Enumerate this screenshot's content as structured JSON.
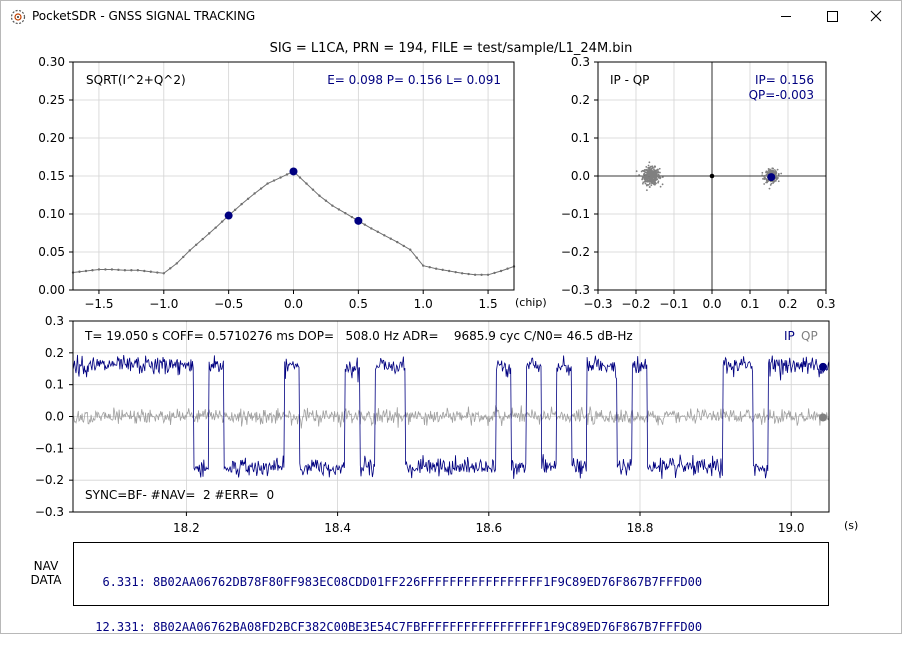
{
  "window": {
    "title": "PocketSDR - GNSS SIGNAL TRACKING",
    "icons": [
      "app-logo-icon",
      "minimize-icon",
      "maximize-icon",
      "close-icon"
    ]
  },
  "header": {
    "title": "SIG = L1CA, PRN = 194, FILE = test/sample/L1_24M.bin"
  },
  "correlation_plot": {
    "label": "SQRT(I^2+Q^2)",
    "readout": "E= 0.098 P= 0.156 L= 0.091",
    "x_unit": "(chip)",
    "x_ticks": [
      "−1.5",
      "−1.0",
      "−0.5",
      "0.0",
      "0.5",
      "1.0",
      "1.5"
    ],
    "y_ticks": [
      "0.00",
      "0.05",
      "0.10",
      "0.15",
      "0.20",
      "0.25",
      "0.30"
    ]
  },
  "iq_plot": {
    "label": "IP - QP",
    "ip_readout": "IP= 0.156",
    "qp_readout": "QP=-0.003",
    "x_ticks": [
      "−0.3",
      "−0.2",
      "−0.1",
      "0.0",
      "0.1",
      "0.2",
      "0.3"
    ],
    "y_ticks": [
      "−0.3",
      "−0.2",
      "−0.1",
      "0.0",
      "0.1",
      "0.2",
      "0.3"
    ]
  },
  "time_plot": {
    "status": "T= 19.050 s COFF= 0.5710276 ms DOP=   508.0 Hz ADR=    9685.9 cyc C/N0= 46.5 dB-Hz",
    "legend_ip": "IP",
    "legend_qp": "QP",
    "sync": "SYNC=BF- #NAV=  2 #ERR=  0",
    "x_unit": "(s)",
    "x_ticks": [
      "18.2",
      "18.4",
      "18.6",
      "18.8",
      "19.0"
    ],
    "y_ticks": [
      "−0.3",
      "−0.2",
      "−0.1",
      "0.0",
      "0.1",
      "0.2",
      "0.3"
    ]
  },
  "nav_data": {
    "label_line1": "NAV",
    "label_line2": "DATA",
    "lines": [
      "  6.331: 8B02AA06762DB78F80FF983EC08CDD01FF226FFFFFFFFFFFFFFFFF1F9C89ED76F867B7FFFD00",
      " 12.331: 8B02AA06762BA08FD2BCF382C00BE3E54C7FBFFFFFFFFFFFFFFFFF1F9C89ED76F867B7FFFD00"
    ]
  },
  "colors": {
    "ip": "#000080",
    "qp": "#808080",
    "grid": "#d3d3d3",
    "trace": "#707070"
  },
  "chart_data": [
    {
      "type": "line",
      "name": "correlation",
      "xlabel": "(chip)",
      "ylabel": "",
      "xlim": [
        -1.7,
        1.7
      ],
      "ylim": [
        0,
        0.3
      ],
      "grid": true,
      "series": [
        {
          "x": [
            -1.7,
            -1.6,
            -1.5,
            -1.4,
            -1.3,
            -1.2,
            -1.1,
            -1.0,
            -0.9,
            -0.8,
            -0.7,
            -0.6,
            -0.5,
            -0.4,
            -0.3,
            -0.2,
            -0.1,
            0.0,
            0.1,
            0.2,
            0.3,
            0.4,
            0.5,
            0.6,
            0.7,
            0.8,
            0.9,
            1.0,
            1.1,
            1.2,
            1.3,
            1.4,
            1.5,
            1.6,
            1.7
          ],
          "y": [
            0.023,
            0.025,
            0.027,
            0.027,
            0.026,
            0.026,
            0.024,
            0.022,
            0.035,
            0.052,
            0.067,
            0.082,
            0.098,
            0.113,
            0.127,
            0.14,
            0.148,
            0.156,
            0.14,
            0.124,
            0.111,
            0.101,
            0.091,
            0.081,
            0.072,
            0.063,
            0.053,
            0.032,
            0.028,
            0.025,
            0.022,
            0.02,
            0.02,
            0.025,
            0.031
          ]
        }
      ],
      "markers": {
        "x": [
          -0.5,
          0.0,
          0.5
        ],
        "y": [
          0.098,
          0.156,
          0.091
        ]
      }
    },
    {
      "type": "scatter",
      "name": "ip-qp",
      "xlim": [
        -0.3,
        0.3
      ],
      "ylim": [
        -0.3,
        0.3
      ],
      "grid": true,
      "clusters": [
        {
          "cx": -0.16,
          "cy": 0.0,
          "spread": 0.02,
          "count": 400
        },
        {
          "cx": 0.156,
          "cy": 0.0,
          "spread": 0.015,
          "count": 300
        }
      ],
      "origin_marker": {
        "x": 0.0,
        "y": 0.0
      },
      "current_point": {
        "x": 0.156,
        "y": -0.003
      }
    },
    {
      "type": "line",
      "name": "ip-qp-time",
      "xlabel": "(s)",
      "xlim": [
        18.05,
        19.05
      ],
      "ylim": [
        -0.3,
        0.3
      ],
      "grid": true,
      "ip_level": 0.16,
      "ip_noise": 0.014,
      "qp_noise": 0.012,
      "ip_segments": [
        {
          "from": 18.05,
          "to": 18.21,
          "sign": 1
        },
        {
          "from": 18.21,
          "to": 18.23,
          "sign": -1
        },
        {
          "from": 18.23,
          "to": 18.25,
          "sign": 1
        },
        {
          "from": 18.25,
          "to": 18.33,
          "sign": -1
        },
        {
          "from": 18.33,
          "to": 18.35,
          "sign": 1
        },
        {
          "from": 18.35,
          "to": 18.41,
          "sign": -1
        },
        {
          "from": 18.41,
          "to": 18.43,
          "sign": 1
        },
        {
          "from": 18.43,
          "to": 18.45,
          "sign": -1
        },
        {
          "from": 18.45,
          "to": 18.49,
          "sign": 1
        },
        {
          "from": 18.49,
          "to": 18.61,
          "sign": -1
        },
        {
          "from": 18.61,
          "to": 18.63,
          "sign": 1
        },
        {
          "from": 18.63,
          "to": 18.65,
          "sign": -1
        },
        {
          "from": 18.65,
          "to": 18.67,
          "sign": 1
        },
        {
          "from": 18.67,
          "to": 18.69,
          "sign": -1
        },
        {
          "from": 18.69,
          "to": 18.71,
          "sign": 1
        },
        {
          "from": 18.71,
          "to": 18.73,
          "sign": -1
        },
        {
          "from": 18.73,
          "to": 18.77,
          "sign": 1
        },
        {
          "from": 18.77,
          "to": 18.79,
          "sign": -1
        },
        {
          "from": 18.79,
          "to": 18.81,
          "sign": 1
        },
        {
          "from": 18.81,
          "to": 18.91,
          "sign": -1
        },
        {
          "from": 18.91,
          "to": 18.95,
          "sign": 1
        },
        {
          "from": 18.95,
          "to": 18.97,
          "sign": -1
        },
        {
          "from": 18.97,
          "to": 18.99,
          "sign": 1
        },
        {
          "from": 18.99,
          "to": 19.05,
          "sign": 1
        }
      ],
      "end_markers": {
        "ip": 0.156,
        "qp": -0.003
      }
    }
  ]
}
